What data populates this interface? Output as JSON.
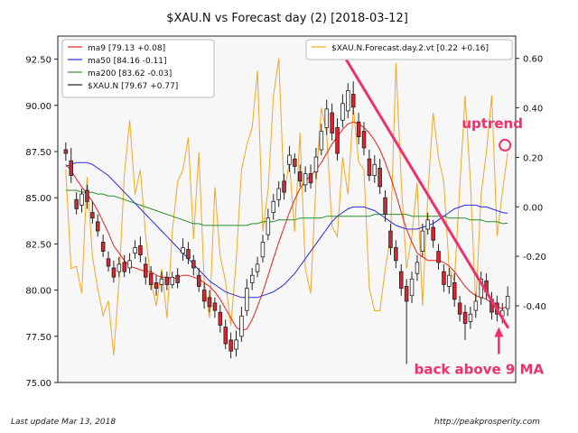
{
  "chart_data": {
    "type": "candlestick",
    "title": "$XAU.N vs Forecast day (2)  [2018-03-12]",
    "y_left": {
      "ylim": [
        75.0,
        93.75
      ],
      "ticks": [
        75.0,
        77.5,
        80.0,
        82.5,
        85.0,
        87.5,
        90.0,
        92.5
      ]
    },
    "y_right": {
      "ylim": [
        -0.71,
        0.69
      ],
      "ticks": [
        0.6,
        0.4,
        0.2,
        0.0,
        -0.2,
        -0.4
      ]
    },
    "legend_left_position": "top-left",
    "legend_right_position": "top-right",
    "legend_left": [
      {
        "label": "ma9 [79.13 +0.08]",
        "color": "#e8201c"
      },
      {
        "label": "ma50 [84.16 -0.11]",
        "color": "#2a2ae0"
      },
      {
        "label": "ma200 [83.62 -0.03]",
        "color": "#279227"
      },
      {
        "label": "$XAU.N [79.67 +0.77]",
        "color": "#222222"
      }
    ],
    "legend_right": [
      {
        "label": "$XAU.N.Forecast.day.2.vt [0.22 +0.16]",
        "color": "#f5a623"
      }
    ],
    "colors": {
      "up_candle": "#ffffff",
      "down_candle": "#d9262f",
      "ma9": "#e8201c",
      "ma50": "#2a2ae0",
      "ma200": "#279227",
      "forecast": "#f5a623",
      "trendline": "#f0306a",
      "annotation": "#f0306a",
      "plot_bg": "#f7f7f7"
    },
    "close": [
      87.4,
      86.2,
      84.4,
      85.2,
      84.8,
      83.9,
      83.2,
      82.1,
      81.3,
      80.7,
      81.4,
      81.0,
      81.6,
      82.3,
      81.9,
      80.7,
      80.3,
      80.1,
      80.6,
      80.3,
      80.7,
      80.4,
      82.3,
      81.7,
      81.2,
      80.2,
      79.4,
      79.1,
      78.9,
      78.1,
      77.1,
      76.7,
      77.3,
      78.6,
      80.1,
      80.8,
      81.4,
      82.6,
      83.9,
      84.8,
      85.5,
      85.3,
      87.3,
      86.7,
      85.9,
      86.3,
      85.8,
      87.2,
      88.6,
      89.8,
      88.5,
      87.4,
      90.1,
      90.8,
      89.9,
      88.3,
      87.7,
      86.2,
      86.8,
      85.6,
      84.1,
      82.3,
      81.6,
      80.1,
      79.4,
      80.6,
      81.5,
      83.2,
      83.8,
      82.7,
      81.5,
      80.3,
      80.8,
      79.5,
      78.7,
      78.2,
      78.7,
      79.4,
      80.6,
      79.9,
      78.8,
      78.7,
      78.9,
      79.67
    ],
    "open": [
      87.6,
      87.0,
      84.9,
      84.6,
      85.4,
      84.2,
      83.7,
      82.6,
      81.7,
      81.2,
      81.0,
      81.5,
      81.2,
      82.0,
      82.4,
      81.4,
      80.9,
      80.4,
      80.3,
      80.7,
      80.3,
      80.8,
      82.0,
      82.2,
      81.6,
      80.8,
      80.0,
      79.6,
      79.3,
      78.8,
      78.0,
      77.3,
      76.8,
      77.5,
      78.9,
      80.4,
      81.0,
      81.8,
      83.0,
      84.2,
      84.9,
      85.9,
      86.8,
      87.1,
      86.4,
      85.7,
      86.3,
      86.4,
      87.6,
      88.8,
      89.6,
      88.8,
      89.2,
      89.7,
      90.6,
      89.1,
      88.6,
      87.1,
      86.2,
      86.6,
      85.0,
      83.2,
      82.3,
      81.0,
      80.2,
      79.7,
      80.9,
      82.1,
      83.3,
      83.4,
      82.1,
      81.0,
      80.2,
      80.4,
      79.3,
      78.8,
      78.3,
      78.9,
      79.6,
      80.5,
      79.5,
      79.3,
      78.6,
      79.0
    ],
    "high": [
      88.0,
      87.7,
      85.3,
      85.5,
      85.7,
      84.8,
      84.1,
      83.0,
      82.1,
      81.6,
      81.8,
      81.9,
      82.0,
      82.7,
      82.9,
      81.8,
      81.3,
      80.8,
      81.0,
      81.0,
      81.0,
      81.2,
      82.8,
      82.6,
      81.9,
      81.2,
      80.4,
      80.0,
      79.6,
      79.2,
      78.4,
      77.7,
      77.8,
      79.1,
      80.6,
      81.2,
      81.8,
      83.0,
      84.4,
      85.2,
      85.9,
      86.3,
      87.8,
      87.4,
      86.8,
      86.7,
      86.8,
      87.7,
      89.0,
      90.3,
      90.1,
      89.3,
      90.6,
      91.2,
      91.3,
      89.6,
      89.1,
      87.6,
      87.3,
      87.1,
      85.4,
      83.6,
      82.7,
      81.4,
      80.6,
      81.0,
      81.9,
      83.6,
      84.2,
      83.8,
      82.5,
      81.4,
      81.2,
      80.9,
      79.7,
      79.2,
      79.1,
      79.8,
      81.0,
      80.9,
      79.9,
      79.7,
      79.3,
      80.2
    ],
    "low": [
      87.0,
      85.8,
      84.1,
      84.2,
      84.4,
      83.6,
      82.9,
      81.8,
      81.0,
      80.4,
      80.7,
      80.7,
      80.9,
      81.7,
      81.5,
      80.3,
      80.0,
      79.7,
      79.9,
      80.0,
      80.1,
      80.1,
      81.6,
      81.4,
      80.8,
      79.9,
      79.0,
      78.8,
      78.5,
      77.7,
      76.8,
      76.3,
      76.4,
      77.2,
      78.6,
      80.0,
      80.7,
      81.5,
      82.7,
      83.8,
      84.5,
      84.9,
      86.4,
      86.3,
      85.6,
      85.3,
      85.5,
      86.0,
      87.3,
      88.4,
      88.1,
      87.0,
      88.8,
      89.3,
      89.5,
      87.9,
      87.3,
      85.9,
      85.8,
      85.2,
      83.7,
      81.9,
      81.2,
      79.7,
      76.0,
      79.3,
      80.5,
      81.8,
      83.0,
      82.3,
      81.1,
      79.9,
      79.8,
      79.1,
      78.3,
      77.3,
      77.9,
      78.5,
      79.2,
      79.5,
      78.4,
      78.3,
      78.2,
      78.6
    ],
    "ma9": [
      86.8,
      86.5,
      86.0,
      85.6,
      85.2,
      84.8,
      84.3,
      83.7,
      83.1,
      82.4,
      82.0,
      81.6,
      81.3,
      81.2,
      81.1,
      81.0,
      81.0,
      80.8,
      80.7,
      80.7,
      80.6,
      80.7,
      80.8,
      80.8,
      80.7,
      80.6,
      80.4,
      80.2,
      79.9,
      79.5,
      79.0,
      78.5,
      78.0,
      77.8,
      77.9,
      78.4,
      79.1,
      79.9,
      80.8,
      81.7,
      82.6,
      83.4,
      84.2,
      84.9,
      85.5,
      85.9,
      86.2,
      86.5,
      86.9,
      87.4,
      87.9,
      88.3,
      88.7,
      89.0,
      89.1,
      89.0,
      88.8,
      88.5,
      88.1,
      87.6,
      86.9,
      86.1,
      85.2,
      84.2,
      83.3,
      82.6,
      82.0,
      81.8,
      81.6,
      81.6,
      81.6,
      81.5,
      81.3,
      81.0,
      80.6,
      80.2,
      79.9,
      79.7,
      79.6,
      79.5,
      79.3,
      79.1,
      79.0,
      79.13
    ],
    "ma50": [
      86.7,
      86.8,
      86.9,
      86.9,
      86.9,
      86.8,
      86.6,
      86.4,
      86.2,
      85.9,
      85.6,
      85.3,
      85.0,
      84.7,
      84.4,
      84.1,
      83.8,
      83.5,
      83.2,
      82.9,
      82.6,
      82.3,
      82.0,
      81.7,
      81.4,
      81.1,
      80.8,
      80.5,
      80.3,
      80.1,
      79.9,
      79.8,
      79.7,
      79.6,
      79.6,
      79.6,
      79.6,
      79.7,
      79.8,
      79.9,
      80.1,
      80.3,
      80.6,
      80.9,
      81.3,
      81.7,
      82.1,
      82.5,
      82.9,
      83.3,
      83.7,
      84.0,
      84.2,
      84.4,
      84.5,
      84.5,
      84.5,
      84.4,
      84.3,
      84.1,
      83.9,
      83.7,
      83.5,
      83.4,
      83.3,
      83.3,
      83.3,
      83.4,
      83.5,
      83.6,
      83.8,
      84.0,
      84.2,
      84.4,
      84.5,
      84.6,
      84.6,
      84.6,
      84.5,
      84.5,
      84.4,
      84.3,
      84.2,
      84.16
    ],
    "ma200": [
      85.4,
      85.4,
      85.4,
      85.3,
      85.3,
      85.3,
      85.2,
      85.2,
      85.1,
      85.1,
      85.0,
      84.9,
      84.8,
      84.7,
      84.6,
      84.5,
      84.4,
      84.3,
      84.2,
      84.1,
      84.0,
      83.9,
      83.8,
      83.7,
      83.6,
      83.6,
      83.5,
      83.5,
      83.5,
      83.5,
      83.5,
      83.5,
      83.5,
      83.5,
      83.5,
      83.6,
      83.6,
      83.7,
      83.7,
      83.7,
      83.8,
      83.8,
      83.8,
      83.8,
      83.9,
      83.9,
      83.9,
      83.9,
      83.9,
      84.0,
      84.0,
      84.0,
      84.0,
      84.0,
      84.0,
      84.0,
      84.0,
      84.0,
      84.1,
      84.1,
      84.1,
      84.1,
      84.1,
      84.1,
      84.1,
      84.0,
      84.0,
      84.0,
      84.0,
      84.0,
      84.0,
      84.0,
      83.9,
      83.9,
      83.9,
      83.9,
      83.8,
      83.8,
      83.8,
      83.7,
      83.7,
      83.7,
      83.6,
      83.62
    ],
    "forecast": [
      0.15,
      -0.25,
      -0.24,
      -0.35,
      0.12,
      -0.2,
      -0.33,
      -0.44,
      -0.38,
      -0.6,
      -0.3,
      0.13,
      0.35,
      0.05,
      0.15,
      -0.12,
      -0.3,
      -0.4,
      -0.25,
      -0.45,
      -0.1,
      0.1,
      0.15,
      0.28,
      -0.13,
      0.22,
      -0.3,
      -0.45,
      0.08,
      -0.2,
      -0.3,
      -0.48,
      -0.22,
      0.15,
      0.25,
      0.32,
      0.55,
      -0.1,
      0.07,
      0.45,
      0.6,
      0.05,
      0.18,
      -0.1,
      0.3,
      -0.25,
      -0.35,
      0.1,
      0.4,
      0.3,
      -0.08,
      -0.12,
      0.2,
      0.05,
      0.4,
      0.18,
      0.15,
      -0.33,
      -0.42,
      -0.42,
      -0.25,
      -0.12,
      0.58,
      0.1,
      -0.25,
      -0.12,
      0.1,
      -0.4,
      0.05,
      0.38,
      0.2,
      0.1,
      -0.25,
      -0.3,
      0.08,
      0.45,
      0.1,
      -0.4,
      0.05,
      0.22,
      0.45,
      -0.12,
      0.06,
      0.22
    ],
    "trendline": {
      "from": {
        "index": 52,
        "value": 92.8
      },
      "to": {
        "index": 83,
        "value": 78.0
      }
    },
    "annotations": [
      {
        "text": "uptrend",
        "marker": "circle",
        "index": 83,
        "axis": "right",
        "value": 0.22
      },
      {
        "text": "back above 9 MA",
        "marker": "arrow-up",
        "index": 81,
        "value": 78.2
      }
    ]
  },
  "footer": {
    "left": "Last update Mar 13, 2018",
    "right": "http://peakprosperity.com"
  }
}
